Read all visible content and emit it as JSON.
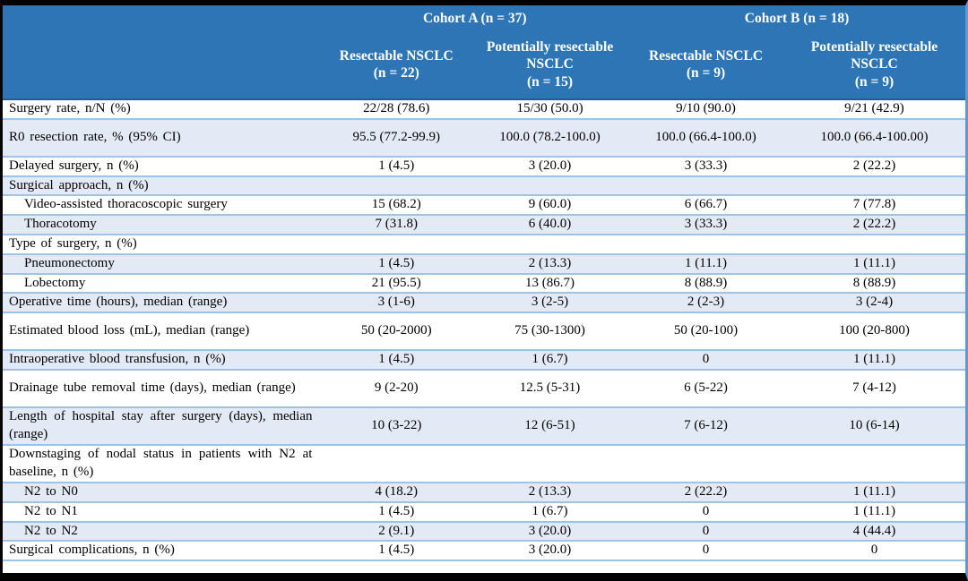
{
  "table": {
    "colors": {
      "header_bg": "#2E75B6",
      "header_text": "#FFFFFF",
      "header_divider": "#1F5C99",
      "banded_row_bg": "#E4EAF5",
      "row_bg": "#FFFFFF",
      "row_separator": "#9DC3E6",
      "frame_right": "#5B9BD5",
      "frame_black": "#000000",
      "body_text": "#000000"
    },
    "header": {
      "cohort_a": "Cohort A (n = 37)",
      "cohort_b": "Cohort B (n = 18)",
      "columns": [
        {
          "name": "Resectable NSCLC",
          "n": "(n = 22)"
        },
        {
          "name": "Potentially resectable NSCLC",
          "n": "(n = 15)"
        },
        {
          "name": "Resectable NSCLC",
          "n": "(n = 9)"
        },
        {
          "name": "Potentially resectable NSCLC",
          "n": "(n = 9)"
        }
      ]
    },
    "rows": [
      {
        "label": "Surgery rate, n/N (%)",
        "indent": false,
        "tall": false,
        "values": [
          "22/28 (78.6)",
          "15/30 (50.0)",
          "9/10 (90.0)",
          "9/21 (42.9)"
        ]
      },
      {
        "label": "R0 resection rate, % (95% CI)",
        "indent": false,
        "tall": true,
        "values": [
          "95.5 (77.2-99.9)",
          "100.0 (78.2-100.0)",
          "100.0 (66.4-100.0)",
          "100.0 (66.4-100.00)"
        ]
      },
      {
        "label": "Delayed surgery, n (%)",
        "indent": false,
        "tall": false,
        "values": [
          "1 (4.5)",
          "3 (20.0)",
          "3 (33.3)",
          "2 (22.2)"
        ]
      },
      {
        "label": "Surgical approach, n (%)",
        "indent": false,
        "tall": false,
        "values": [
          "",
          "",
          "",
          ""
        ]
      },
      {
        "label": "Video-assisted thoracoscopic surgery",
        "indent": true,
        "tall": false,
        "values": [
          "15 (68.2)",
          "9 (60.0)",
          "6 (66.7)",
          "7 (77.8)"
        ]
      },
      {
        "label": "Thoracotomy",
        "indent": true,
        "tall": false,
        "values": [
          "7 (31.8)",
          "6 (40.0)",
          "3 (33.3)",
          "2 (22.2)"
        ]
      },
      {
        "label": "Type of surgery, n (%)",
        "indent": false,
        "tall": false,
        "values": [
          "",
          "",
          "",
          ""
        ]
      },
      {
        "label": "Pneumonectomy",
        "indent": true,
        "tall": false,
        "values": [
          "1 (4.5)",
          "2 (13.3)",
          "1 (11.1)",
          "1 (11.1)"
        ]
      },
      {
        "label": "Lobectomy",
        "indent": true,
        "tall": false,
        "values": [
          "21 (95.5)",
          "13 (86.7)",
          "8 (88.9)",
          "8 (88.9)"
        ]
      },
      {
        "label": "Operative time (hours), median (range)",
        "indent": false,
        "tall": false,
        "values": [
          "3 (1-6)",
          "3 (2-5)",
          "2 (2-3)",
          "3 (2-4)"
        ]
      },
      {
        "label": "Estimated blood loss (mL), median (range)",
        "indent": false,
        "tall": true,
        "values": [
          "50 (20-2000)",
          "75 (30-1300)",
          "50 (20-100)",
          "100 (20-800)"
        ]
      },
      {
        "label": "Intraoperative blood transfusion, n (%)",
        "indent": false,
        "tall": false,
        "values": [
          "1 (4.5)",
          "1 (6.7)",
          "0",
          "1 (11.1)"
        ]
      },
      {
        "label": "Drainage tube removal time (days), median (range)",
        "indent": false,
        "tall": true,
        "values": [
          "9 (2-20)",
          "12.5 (5-31)",
          "6 (5-22)",
          "7 (4-12)"
        ]
      },
      {
        "label": "Length of hospital stay after surgery (days), median (range)",
        "indent": false,
        "tall": true,
        "values": [
          "10 (3-22)",
          "12 (6-51)",
          "7 (6-12)",
          "10 (6-14)"
        ]
      },
      {
        "label": "Downstaging of nodal status in patients with N2 at baseline, n (%)",
        "indent": false,
        "tall": true,
        "values": [
          "",
          "",
          "",
          ""
        ]
      },
      {
        "label": "N2 to N0",
        "indent": true,
        "tall": false,
        "values": [
          "4 (18.2)",
          "2 (13.3)",
          "2 (22.2)",
          "1 (11.1)"
        ]
      },
      {
        "label": "N2 to N1",
        "indent": true,
        "tall": false,
        "values": [
          "1 (4.5)",
          "1 (6.7)",
          "0",
          "1 (11.1)"
        ]
      },
      {
        "label": "N2 to N2",
        "indent": true,
        "tall": false,
        "values": [
          "2 (9.1)",
          "3 (20.0)",
          "0",
          "4 (44.4)"
        ]
      },
      {
        "label": "Surgical complications, n (%)",
        "indent": false,
        "tall": false,
        "values": [
          "1 (4.5)",
          "3 (20.0)",
          "0",
          "0"
        ]
      }
    ]
  }
}
